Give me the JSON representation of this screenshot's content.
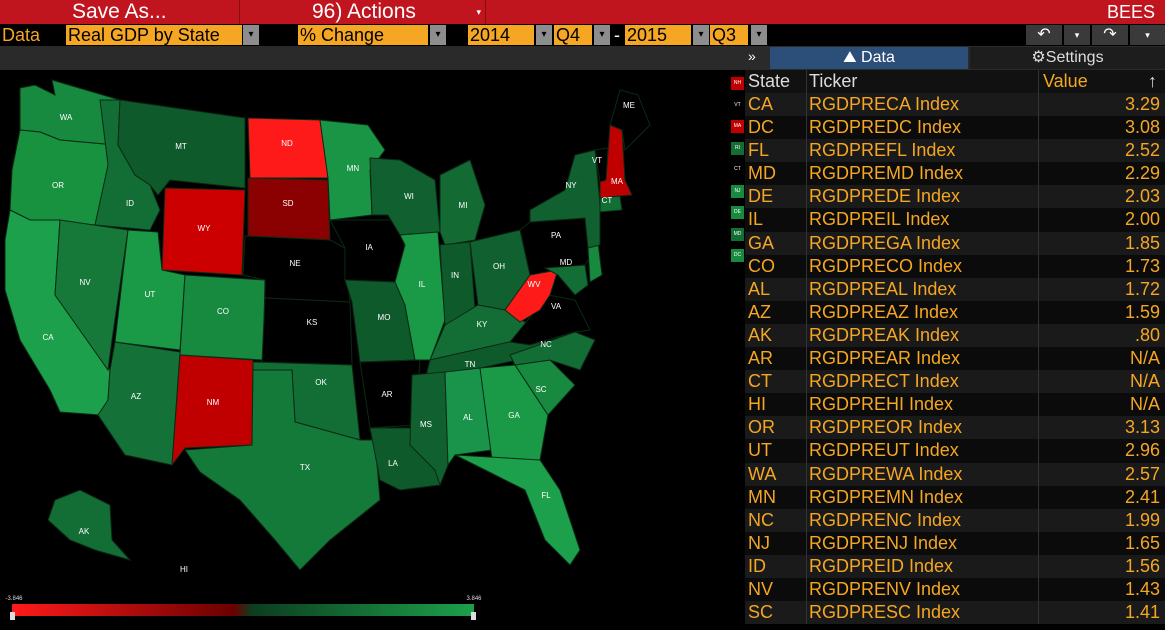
{
  "toolbar": {
    "save_as": "Save As...",
    "actions": "96) Actions",
    "app_name": "BEES"
  },
  "controls": {
    "data_label": "Data",
    "dataset": "Real GDP by State",
    "measure": "% Change",
    "start_year": "2014",
    "start_quarter": "Q4",
    "range_sep": "-",
    "end_year": "2015",
    "end_quarter": "Q3"
  },
  "tabs": {
    "data": "Data",
    "settings": "Settings",
    "collapse": "»"
  },
  "legend": {
    "min": "-3.846",
    "max": "3.846"
  },
  "small_states": [
    "NH",
    "VT",
    "MA",
    "RI",
    "CT",
    "NJ",
    "DE",
    "MD",
    "DC"
  ],
  "map_labels": {
    "WA": "WA",
    "OR": "OR",
    "CA": "CA",
    "ID": "ID",
    "NV": "NV",
    "MT": "MT",
    "WY": "WY",
    "UT": "UT",
    "AZ": "AZ",
    "CO": "CO",
    "NM": "NM",
    "ND": "ND",
    "SD": "SD",
    "NE": "NE",
    "KS": "KS",
    "OK": "OK",
    "TX": "TX",
    "MN": "MN",
    "IA": "IA",
    "MO": "MO",
    "AR": "AR",
    "LA": "LA",
    "WI": "WI",
    "IL": "IL",
    "MI": "MI",
    "IN": "IN",
    "OH": "OH",
    "KY": "KY",
    "TN": "TN",
    "MS": "MS",
    "AL": "AL",
    "GA": "GA",
    "FL": "FL",
    "SC": "SC",
    "NC": "NC",
    "VA": "VA",
    "WV": "WV",
    "PA": "PA",
    "NY": "NY",
    "VT": "VT",
    "MA": "MA",
    "CT": "CT",
    "MD": "MD",
    "ME": "ME",
    "AK": "AK",
    "HI": "HI"
  },
  "colors": {
    "high": "#1a9e4a",
    "mid": "#0c3d1f",
    "low": "#ff1a1a",
    "nodata": "#000000",
    "accent": "#f5a623"
  },
  "table": {
    "headers": {
      "state": "State",
      "ticker": "Ticker",
      "value": "Value"
    },
    "rows": [
      {
        "state": "CA",
        "ticker": "RGDPRECA Index",
        "value": "3.29"
      },
      {
        "state": "DC",
        "ticker": "RGDPREDC Index",
        "value": "3.08"
      },
      {
        "state": "FL",
        "ticker": "RGDPREFL Index",
        "value": "2.52"
      },
      {
        "state": "MD",
        "ticker": "RGDPREMD Index",
        "value": "2.29"
      },
      {
        "state": "DE",
        "ticker": "RGDPREDE Index",
        "value": "2.03"
      },
      {
        "state": "IL",
        "ticker": "RGDPREIL Index",
        "value": "2.00"
      },
      {
        "state": "GA",
        "ticker": "RGDPREGA Index",
        "value": "1.85"
      },
      {
        "state": "CO",
        "ticker": "RGDPRECO Index",
        "value": "1.73"
      },
      {
        "state": "AL",
        "ticker": "RGDPREAL Index",
        "value": "1.72"
      },
      {
        "state": "AZ",
        "ticker": "RGDPREAZ Index",
        "value": "1.59"
      },
      {
        "state": "AK",
        "ticker": "RGDPREAK Index",
        "value": ".80"
      },
      {
        "state": "AR",
        "ticker": "RGDPREAR Index",
        "value": "N/A"
      },
      {
        "state": "CT",
        "ticker": "RGDPRECT Index",
        "value": "N/A"
      },
      {
        "state": "HI",
        "ticker": "RGDPREHI Index",
        "value": "N/A"
      },
      {
        "state": "OR",
        "ticker": "RGDPREOR Index",
        "value": "3.13"
      },
      {
        "state": "UT",
        "ticker": "RGDPREUT Index",
        "value": "2.96"
      },
      {
        "state": "WA",
        "ticker": "RGDPREWA Index",
        "value": "2.57"
      },
      {
        "state": "MN",
        "ticker": "RGDPREMN Index",
        "value": "2.41"
      },
      {
        "state": "NC",
        "ticker": "RGDPRENC Index",
        "value": "1.99"
      },
      {
        "state": "NJ",
        "ticker": "RGDPRENJ Index",
        "value": "1.65"
      },
      {
        "state": "ID",
        "ticker": "RGDPREID Index",
        "value": "1.56"
      },
      {
        "state": "NV",
        "ticker": "RGDPRENV Index",
        "value": "1.43"
      },
      {
        "state": "SC",
        "ticker": "RGDPRESC Index",
        "value": "1.41"
      }
    ]
  }
}
